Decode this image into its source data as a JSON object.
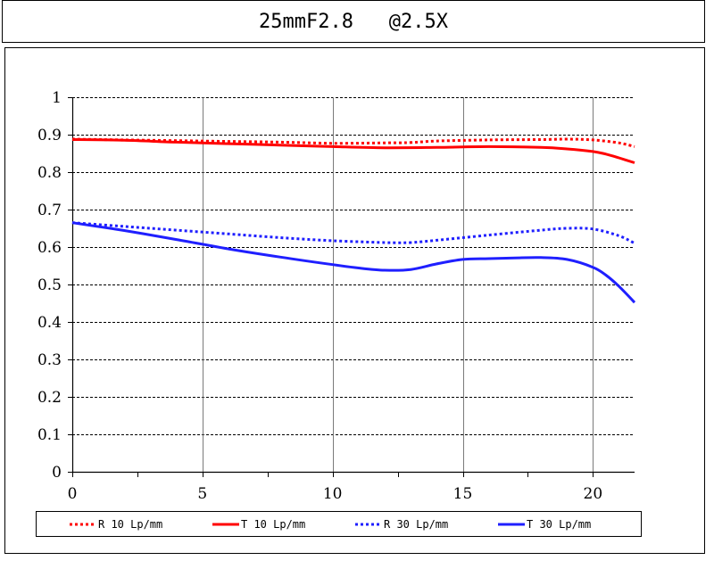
{
  "title": "25mmF2.8   @2.5X",
  "colors": {
    "red": "#ff0000",
    "blue": "#1f1fff",
    "grid": "#000000"
  },
  "chart_data": {
    "type": "line",
    "title": "25mmF2.8   @2.5X",
    "xlabel": "",
    "ylabel": "",
    "xlim": [
      0,
      21.6
    ],
    "ylim": [
      0,
      1
    ],
    "x_ticks": [
      0,
      5,
      10,
      15,
      20
    ],
    "x_tick_labels": [
      "0",
      "5",
      "10",
      "15",
      "20"
    ],
    "x_minor_ticks": [
      2.5,
      7.5,
      12.5,
      17.5
    ],
    "y_ticks": [
      0,
      0.1,
      0.2,
      0.3,
      0.4,
      0.5,
      0.6,
      0.7,
      0.8,
      0.9,
      1
    ],
    "y_tick_labels": [
      "0",
      "0.1",
      "0.2",
      "0.3",
      "0.4",
      "0.5",
      "0.6",
      "0.7",
      "0.8",
      "0.9",
      "1"
    ],
    "grid": "vertical solid at major x ticks, horizontal dashed at y ticks",
    "legend_position": "bottom",
    "series": [
      {
        "name": "R 10 Lp/mm",
        "color": "#ff0000",
        "style": "dotted",
        "x": [
          0,
          2,
          4,
          6,
          8,
          10,
          12,
          13,
          14,
          16,
          18,
          19,
          20,
          21,
          21.6
        ],
        "y": [
          0.888,
          0.886,
          0.884,
          0.882,
          0.88,
          0.877,
          0.878,
          0.879,
          0.883,
          0.886,
          0.887,
          0.888,
          0.886,
          0.878,
          0.868
        ]
      },
      {
        "name": "T 10 Lp/mm",
        "color": "#ff0000",
        "style": "solid",
        "x": [
          0,
          2,
          4,
          6,
          8,
          10,
          12,
          14,
          16,
          18,
          19,
          20,
          20.5,
          21,
          21.6
        ],
        "y": [
          0.887,
          0.885,
          0.88,
          0.876,
          0.872,
          0.868,
          0.865,
          0.866,
          0.868,
          0.866,
          0.862,
          0.855,
          0.848,
          0.838,
          0.825
        ]
      },
      {
        "name": "R 30 Lp/mm",
        "color": "#1f1fff",
        "style": "dotted",
        "x": [
          0,
          2,
          4,
          6,
          8,
          10,
          12,
          13,
          14,
          16,
          18,
          19,
          20,
          21,
          21.6
        ],
        "y": [
          0.665,
          0.655,
          0.645,
          0.635,
          0.625,
          0.617,
          0.612,
          0.612,
          0.618,
          0.632,
          0.645,
          0.65,
          0.648,
          0.63,
          0.61
        ]
      },
      {
        "name": "T 30 Lp/mm",
        "color": "#1f1fff",
        "style": "solid",
        "x": [
          0,
          2,
          4,
          6,
          8,
          10,
          11,
          12,
          13,
          14,
          15,
          16,
          17,
          18,
          19,
          20,
          20.5,
          21,
          21.6
        ],
        "y": [
          0.665,
          0.644,
          0.62,
          0.595,
          0.573,
          0.553,
          0.544,
          0.538,
          0.54,
          0.555,
          0.567,
          0.569,
          0.571,
          0.572,
          0.567,
          0.546,
          0.525,
          0.495,
          0.452
        ]
      }
    ]
  }
}
